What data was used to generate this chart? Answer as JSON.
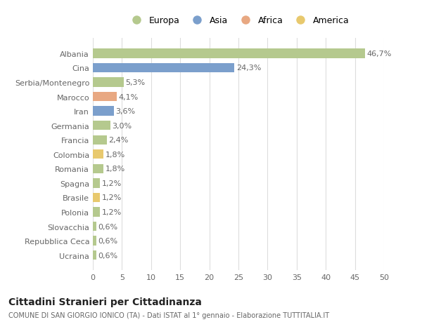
{
  "categories": [
    "Ucraina",
    "Repubblica Ceca",
    "Slovacchia",
    "Polonia",
    "Brasile",
    "Spagna",
    "Romania",
    "Colombia",
    "Francia",
    "Germania",
    "Iran",
    "Marocco",
    "Serbia/Montenegro",
    "Cina",
    "Albania"
  ],
  "values": [
    0.6,
    0.6,
    0.6,
    1.2,
    1.2,
    1.2,
    1.8,
    1.8,
    2.4,
    3.0,
    3.6,
    4.1,
    5.3,
    24.3,
    46.7
  ],
  "labels": [
    "0,6%",
    "0,6%",
    "0,6%",
    "1,2%",
    "1,2%",
    "1,2%",
    "1,8%",
    "1,8%",
    "2,4%",
    "3,0%",
    "3,6%",
    "4,1%",
    "5,3%",
    "24,3%",
    "46,7%"
  ],
  "colors": [
    "#b5c98e",
    "#b5c98e",
    "#b5c98e",
    "#b5c98e",
    "#e8c96e",
    "#b5c98e",
    "#b5c98e",
    "#e8c96e",
    "#b5c98e",
    "#b5c98e",
    "#7b9fcc",
    "#e8a882",
    "#b5c98e",
    "#7b9fcc",
    "#b5c98e"
  ],
  "legend_labels": [
    "Europa",
    "Asia",
    "Africa",
    "America"
  ],
  "legend_colors": [
    "#b5c98e",
    "#7b9fcc",
    "#e8a882",
    "#e8c96e"
  ],
  "xlim": [
    0,
    50
  ],
  "xticks": [
    0,
    5,
    10,
    15,
    20,
    25,
    30,
    35,
    40,
    45,
    50
  ],
  "title": "Cittadini Stranieri per Cittadinanza",
  "subtitle": "COMUNE DI SAN GIORGIO IONICO (TA) - Dati ISTAT al 1° gennaio - Elaborazione TUTTITALIA.IT",
  "bg_color": "#ffffff",
  "bar_height": 0.65,
  "grid_color": "#dddddd",
  "label_fontsize": 8.0,
  "tick_fontsize": 8.0
}
